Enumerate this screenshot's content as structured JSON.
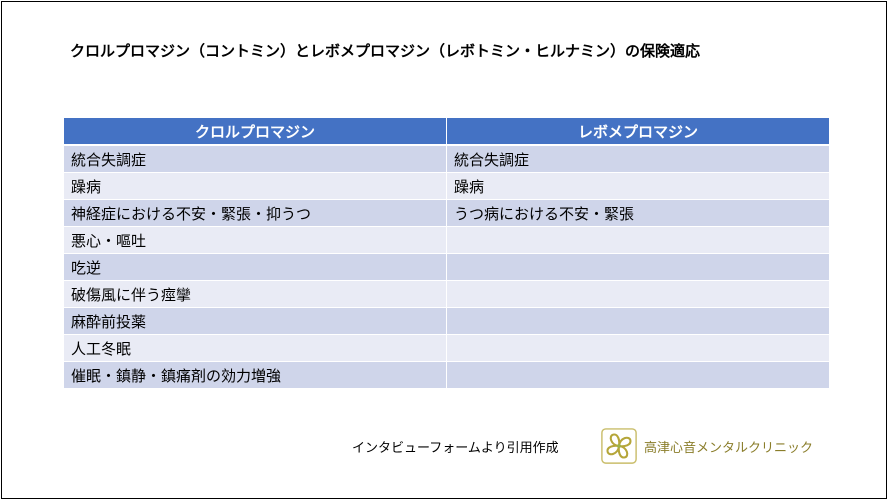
{
  "title": "クロルプロマジン（コントミン）とレボメプロマジン（レボトミン・ヒルナミン）の保険適応",
  "table": {
    "headers": [
      "クロルプロマジン",
      "レボメプロマジン"
    ],
    "rows": [
      [
        "統合失調症",
        "統合失調症"
      ],
      [
        "躁病",
        "躁病"
      ],
      [
        "神経症における不安・緊張・抑うつ",
        "うつ病における不安・緊張"
      ],
      [
        "悪心・嘔吐",
        ""
      ],
      [
        "吃逆",
        ""
      ],
      [
        "破傷風に伴う痙攣",
        ""
      ],
      [
        "麻酔前投薬",
        ""
      ],
      [
        "人工冬眠",
        ""
      ],
      [
        "催眠・鎮静・鎮痛剤の効力増強",
        ""
      ]
    ]
  },
  "footer": {
    "source": "インタビューフォームより引用作成",
    "clinic_name": "高津心音メンタルクリニック",
    "logo_icon": "clinic-logo-icon",
    "logo_color": "#b5a63a"
  },
  "colors": {
    "header_bg": "#4472c4",
    "row_odd": "#cfd5ea",
    "row_even": "#e9ebf5"
  }
}
